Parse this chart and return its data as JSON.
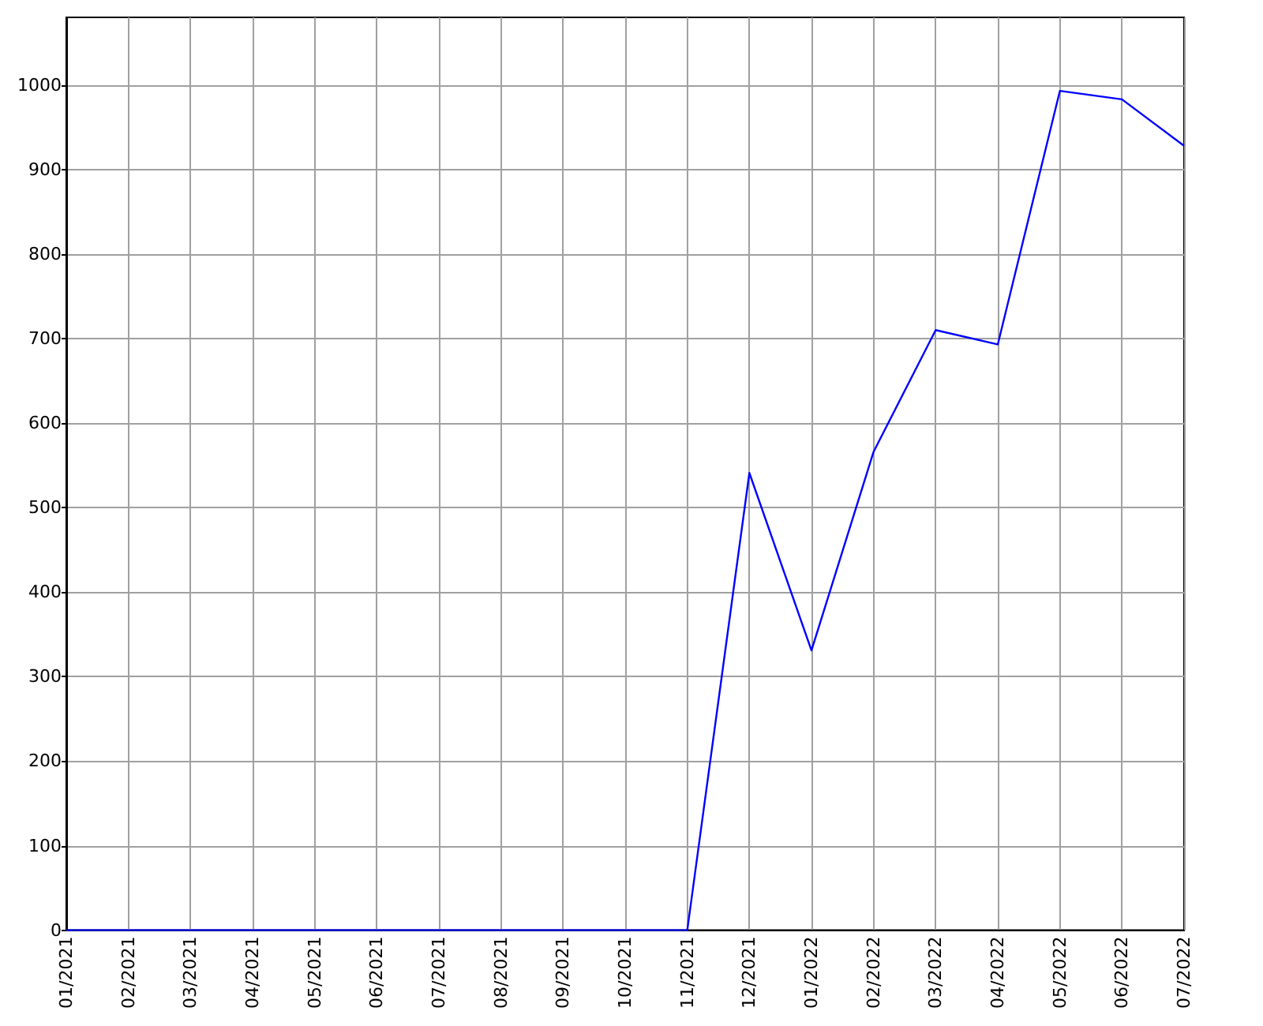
{
  "chart_data": {
    "type": "line",
    "categories": [
      "01/2021",
      "02/2021",
      "03/2021",
      "04/2021",
      "05/2021",
      "06/2021",
      "07/2021",
      "08/2021",
      "09/2021",
      "10/2021",
      "11/2021",
      "12/2021",
      "01/2022",
      "02/2022",
      "03/2022",
      "04/2022",
      "05/2022",
      "06/2022",
      "07/2022"
    ],
    "series": [
      {
        "color": "#0000ff",
        "values": [
          0,
          0,
          0,
          0,
          0,
          0,
          0,
          0,
          0,
          0,
          0,
          541,
          331,
          566,
          710,
          693,
          993,
          983,
          928
        ]
      }
    ],
    "ylim": [
      0,
      1080
    ],
    "yticks": [
      0,
      100,
      200,
      300,
      400,
      500,
      600,
      700,
      800,
      900,
      1000
    ],
    "grid": true,
    "marker": "none",
    "line_style": "solid"
  }
}
